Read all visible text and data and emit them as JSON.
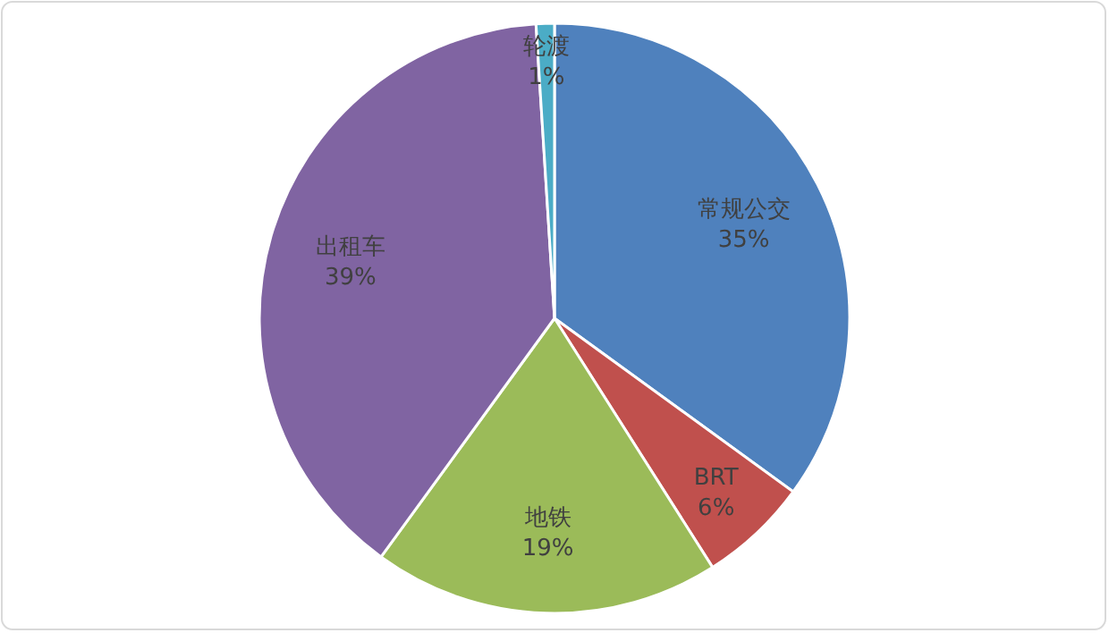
{
  "chart_data": {
    "type": "pie",
    "categories": [
      "常规公交",
      "BRT",
      "地铁",
      "出租车",
      "轮渡"
    ],
    "values": [
      35,
      6,
      19,
      39,
      1
    ],
    "value_labels": [
      "35%",
      "6%",
      "19%",
      "39%",
      "1%"
    ],
    "colors": [
      "#4f81bd",
      "#c0504d",
      "#9bbb59",
      "#8064a2",
      "#4bacc6"
    ],
    "legend": false
  }
}
